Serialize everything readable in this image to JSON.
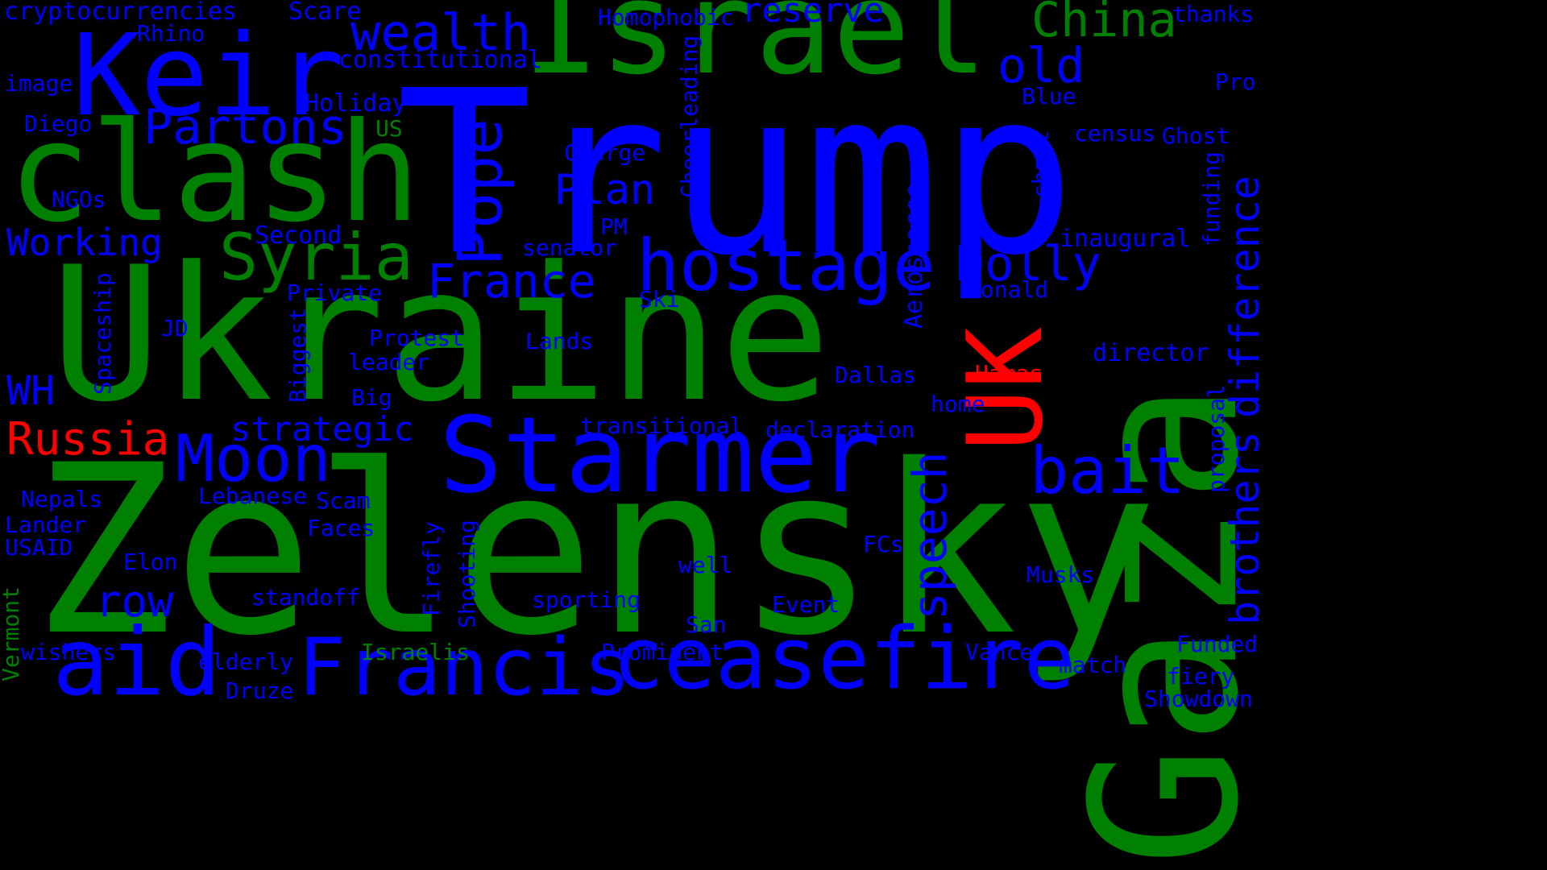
{
  "colors": {
    "background": "#000000",
    "blue": "#0000FF",
    "green": "#008000",
    "red": "#FF0000"
  },
  "words": [
    {
      "text": "Zelensky",
      "color": "green"
    },
    {
      "text": "Ukraine",
      "color": "green"
    },
    {
      "text": "Trump",
      "color": "blue"
    },
    {
      "text": "Gaza",
      "color": "green"
    },
    {
      "text": "Israel",
      "color": "green"
    },
    {
      "text": "clash",
      "color": "green"
    },
    {
      "text": "Keir",
      "color": "blue"
    },
    {
      "text": "ceasefire",
      "color": "blue"
    },
    {
      "text": "Starmer",
      "color": "blue"
    },
    {
      "text": "Francis",
      "color": "blue"
    },
    {
      "text": "aid",
      "color": "blue"
    },
    {
      "text": "UK",
      "color": "red"
    },
    {
      "text": "hostage",
      "color": "blue"
    },
    {
      "text": "Syria",
      "color": "green"
    },
    {
      "text": "Pope",
      "color": "blue"
    },
    {
      "text": "Moon",
      "color": "blue"
    },
    {
      "text": "bait",
      "color": "blue"
    },
    {
      "text": "brothers",
      "color": "blue"
    },
    {
      "text": "difference",
      "color": "blue"
    },
    {
      "text": "Partons",
      "color": "blue"
    },
    {
      "text": "wealth",
      "color": "blue"
    },
    {
      "text": "China",
      "color": "green"
    },
    {
      "text": "old",
      "color": "blue"
    },
    {
      "text": "Dolly",
      "color": "blue"
    },
    {
      "text": "France",
      "color": "blue"
    },
    {
      "text": "Plan",
      "color": "blue"
    },
    {
      "text": "row",
      "color": "blue"
    },
    {
      "text": "speech",
      "color": "blue"
    },
    {
      "text": "Working",
      "color": "blue"
    },
    {
      "text": "Russia",
      "color": "red"
    },
    {
      "text": "WH",
      "color": "blue"
    },
    {
      "text": "strategic",
      "color": "blue"
    },
    {
      "text": "reserve",
      "color": "blue"
    },
    {
      "text": "cryptocurrencies",
      "color": "blue"
    },
    {
      "text": "Scare",
      "color": "blue"
    },
    {
      "text": "Homophobic",
      "color": "blue"
    },
    {
      "text": "thanks",
      "color": "blue"
    },
    {
      "text": "Rhino",
      "color": "blue"
    },
    {
      "text": "constitutional",
      "color": "blue"
    },
    {
      "text": "image",
      "color": "blue"
    },
    {
      "text": "Holiday",
      "color": "blue"
    },
    {
      "text": "Blue",
      "color": "blue"
    },
    {
      "text": "Pro",
      "color": "blue"
    },
    {
      "text": "Diego",
      "color": "blue"
    },
    {
      "text": "US",
      "color": "green"
    },
    {
      "text": "census",
      "color": "blue"
    },
    {
      "text": "Ghost",
      "color": "blue"
    },
    {
      "text": "Cheerleading",
      "color": "blue"
    },
    {
      "text": "chant",
      "color": "blue"
    },
    {
      "text": "Charge",
      "color": "blue"
    },
    {
      "text": "funding",
      "color": "blue"
    },
    {
      "text": "NGOs",
      "color": "blue"
    },
    {
      "text": "PM",
      "color": "blue"
    },
    {
      "text": "Second",
      "color": "blue"
    },
    {
      "text": "inaugural",
      "color": "blue"
    },
    {
      "text": "senator",
      "color": "blue"
    },
    {
      "text": "Aerospaces",
      "color": "blue"
    },
    {
      "text": "Private",
      "color": "blue"
    },
    {
      "text": "Donald",
      "color": "blue"
    },
    {
      "text": "Ski",
      "color": "blue"
    },
    {
      "text": "Spaceship",
      "color": "blue"
    },
    {
      "text": "Biggest",
      "color": "blue"
    },
    {
      "text": "JD",
      "color": "blue"
    },
    {
      "text": "Protest",
      "color": "blue"
    },
    {
      "text": "Lands",
      "color": "blue"
    },
    {
      "text": "director",
      "color": "blue"
    },
    {
      "text": "leader",
      "color": "blue"
    },
    {
      "text": "Dallas",
      "color": "blue"
    },
    {
      "text": "Hamas",
      "color": "red"
    },
    {
      "text": "Big",
      "color": "blue"
    },
    {
      "text": "home",
      "color": "blue"
    },
    {
      "text": "proposal",
      "color": "blue"
    },
    {
      "text": "transitional",
      "color": "blue"
    },
    {
      "text": "declaration",
      "color": "blue"
    },
    {
      "text": "Lebanese",
      "color": "blue"
    },
    {
      "text": "Nepals",
      "color": "blue"
    },
    {
      "text": "Scam",
      "color": "blue"
    },
    {
      "text": "Lander",
      "color": "blue"
    },
    {
      "text": "Faces",
      "color": "blue"
    },
    {
      "text": "USAID",
      "color": "blue"
    },
    {
      "text": "FCs",
      "color": "blue"
    },
    {
      "text": "Firefly",
      "color": "blue"
    },
    {
      "text": "Shooting",
      "color": "blue"
    },
    {
      "text": "Elon",
      "color": "blue"
    },
    {
      "text": "well",
      "color": "blue"
    },
    {
      "text": "Musks",
      "color": "blue"
    },
    {
      "text": "standoff",
      "color": "blue"
    },
    {
      "text": "sporting",
      "color": "blue"
    },
    {
      "text": "Event",
      "color": "blue"
    },
    {
      "text": "Vermont",
      "color": "green"
    },
    {
      "text": "San",
      "color": "blue"
    },
    {
      "text": "Funded",
      "color": "blue"
    },
    {
      "text": "wishers",
      "color": "blue"
    },
    {
      "text": "Israelis",
      "color": "green"
    },
    {
      "text": "Prominent",
      "color": "blue"
    },
    {
      "text": "Vance",
      "color": "blue"
    },
    {
      "text": "match",
      "color": "blue"
    },
    {
      "text": "elderly",
      "color": "blue"
    },
    {
      "text": "fiery",
      "color": "blue"
    },
    {
      "text": "Druze",
      "color": "blue"
    },
    {
      "text": "Showdown",
      "color": "blue"
    }
  ]
}
